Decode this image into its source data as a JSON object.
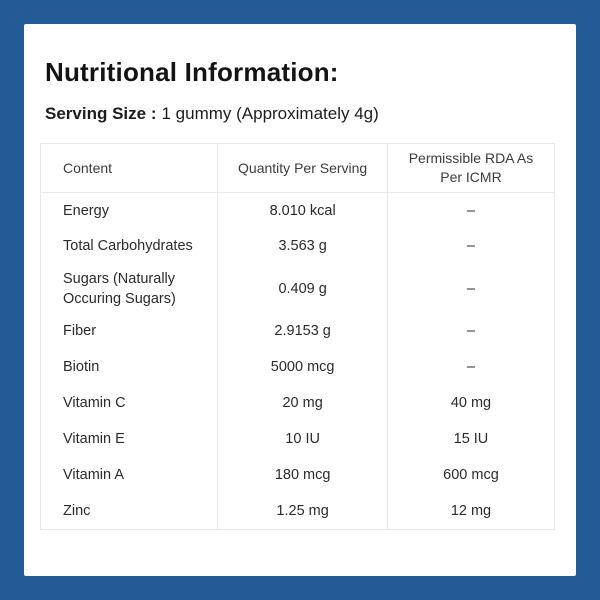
{
  "page": {
    "title": "Nutritional Information:",
    "serving_size_label": "Serving Size :",
    "serving_size_value": "1 gummy (Approximately 4g)"
  },
  "colors": {
    "frame_blue": "#215a94",
    "table_border": "#e9e9e9"
  },
  "table": {
    "headers": [
      "Content",
      "Quantity Per Serving",
      "Permissible RDA As Per ICMR"
    ],
    "rows": [
      {
        "content": "Energy",
        "quantity": "8.010 kcal",
        "rda": "–"
      },
      {
        "content": "Total Carbohydrates",
        "quantity": "3.563 g",
        "rda": "–"
      },
      {
        "content": "Sugars (Naturally Occuring Sugars)",
        "quantity": "0.409 g",
        "rda": "–"
      },
      {
        "content": "Fiber",
        "quantity": "2.9153 g",
        "rda": "–"
      },
      {
        "content": "Biotin",
        "quantity": "5000 mcg",
        "rda": "–"
      },
      {
        "content": "Vitamin C",
        "quantity": "20 mg",
        "rda": "40 mg"
      },
      {
        "content": "Vitamin E",
        "quantity": "10 IU",
        "rda": "15 IU"
      },
      {
        "content": "Vitamin A",
        "quantity": "180 mcg",
        "rda": "600 mcg"
      },
      {
        "content": "Zinc",
        "quantity": "1.25 mg",
        "rda": "12 mg"
      }
    ]
  }
}
